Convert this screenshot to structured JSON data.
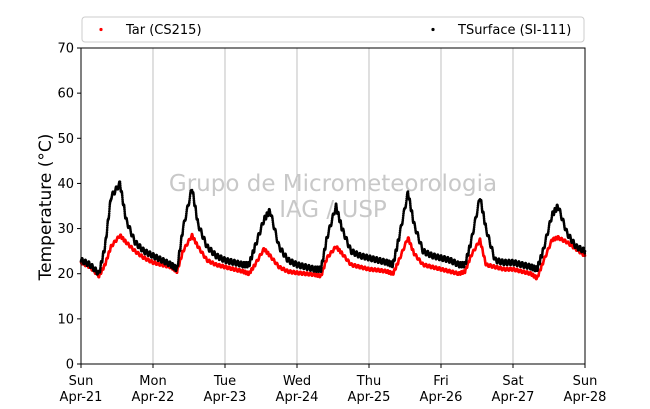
{
  "chart_data": {
    "type": "scatter",
    "title": "",
    "xlabel": "",
    "ylabel": "Temperature (°C)",
    "ylim": [
      0,
      70
    ],
    "yticks": [
      0,
      10,
      20,
      30,
      40,
      50,
      60,
      70
    ],
    "xlim": [
      "2019-04-21 00:00",
      "2019-04-28 00:00"
    ],
    "xtick_labels": [
      {
        "day": "Sun",
        "date": "Apr-21"
      },
      {
        "day": "Mon",
        "date": "Apr-22"
      },
      {
        "day": "Tue",
        "date": "Apr-23"
      },
      {
        "day": "Wed",
        "date": "Apr-24"
      },
      {
        "day": "Thu",
        "date": "Apr-25"
      },
      {
        "day": "Fri",
        "date": "Apr-26"
      },
      {
        "day": "Sat",
        "date": "Apr-27"
      },
      {
        "day": "Sun",
        "date": "Apr-28"
      }
    ],
    "grid": "vertical",
    "legend_position": "top",
    "watermark": [
      "Grupo de Micrometeorologia",
      "IAG / USP"
    ],
    "series": [
      {
        "name": "Tar (CS215)",
        "color": "#ff0000",
        "x": [
          "2019-04-21 00:00",
          "2019-04-21 03:00",
          "2019-04-21 06:00",
          "2019-04-21 08:00",
          "2019-04-21 10:00",
          "2019-04-21 13:00",
          "2019-04-21 15:00",
          "2019-04-21 18:00",
          "2019-04-21 21:00",
          "2019-04-22 00:00",
          "2019-04-22 03:00",
          "2019-04-22 06:00",
          "2019-04-22 08:00",
          "2019-04-22 10:00",
          "2019-04-22 13:00",
          "2019-04-22 15:00",
          "2019-04-22 18:00",
          "2019-04-22 21:00",
          "2019-04-23 00:00",
          "2019-04-23 03:00",
          "2019-04-23 06:00",
          "2019-04-23 08:00",
          "2019-04-23 10:00",
          "2019-04-23 13:00",
          "2019-04-23 15:00",
          "2019-04-23 18:00",
          "2019-04-23 21:00",
          "2019-04-24 00:00",
          "2019-04-24 03:00",
          "2019-04-24 06:00",
          "2019-04-24 08:00",
          "2019-04-24 10:00",
          "2019-04-24 13:00",
          "2019-04-24 15:00",
          "2019-04-24 18:00",
          "2019-04-24 21:00",
          "2019-04-25 00:00",
          "2019-04-25 03:00",
          "2019-04-25 06:00",
          "2019-04-25 08:00",
          "2019-04-25 10:00",
          "2019-04-25 13:00",
          "2019-04-25 15:00",
          "2019-04-25 18:00",
          "2019-04-25 21:00",
          "2019-04-26 00:00",
          "2019-04-26 03:00",
          "2019-04-26 06:00",
          "2019-04-26 08:00",
          "2019-04-26 10:00",
          "2019-04-26 13:00",
          "2019-04-26 15:00",
          "2019-04-26 18:00",
          "2019-04-26 21:00",
          "2019-04-27 00:00",
          "2019-04-27 03:00",
          "2019-04-27 06:00",
          "2019-04-27 08:00",
          "2019-04-27 10:00",
          "2019-04-27 13:00",
          "2019-04-27 15:00",
          "2019-04-27 18:00",
          "2019-04-27 21:00",
          "2019-04-28 00:00"
        ],
        "y": [
          22.5,
          21.5,
          19.5,
          22,
          26,
          28.5,
          27,
          25,
          23.5,
          22.5,
          22,
          21.5,
          20.5,
          25,
          28.5,
          26,
          23,
          22,
          21.5,
          21,
          20.5,
          20,
          22,
          25.5,
          24,
          21.5,
          20.5,
          20.2,
          20,
          19.8,
          19.5,
          23.5,
          26,
          24.5,
          22,
          21.5,
          21,
          20.8,
          20.5,
          20,
          23,
          28,
          24.5,
          22,
          21.5,
          21,
          20.5,
          20,
          20.5,
          24,
          27.5,
          22,
          21.5,
          21,
          21,
          20.5,
          20,
          19,
          22.5,
          27.5,
          28,
          27,
          25.5,
          24
        ]
      },
      {
        "name": "TSurface (SI-111)",
        "color": "#000000",
        "x": [
          "2019-04-21 00:00",
          "2019-04-21 03:00",
          "2019-04-21 06:00",
          "2019-04-21 08:00",
          "2019-04-21 10:00",
          "2019-04-21 13:00",
          "2019-04-21 15:00",
          "2019-04-21 18:00",
          "2019-04-21 21:00",
          "2019-04-22 00:00",
          "2019-04-22 03:00",
          "2019-04-22 06:00",
          "2019-04-22 08:00",
          "2019-04-22 10:00",
          "2019-04-22 13:00",
          "2019-04-22 15:00",
          "2019-04-22 18:00",
          "2019-04-22 21:00",
          "2019-04-23 00:00",
          "2019-04-23 03:00",
          "2019-04-23 06:00",
          "2019-04-23 08:00",
          "2019-04-23 10:00",
          "2019-04-23 13:00",
          "2019-04-23 15:00",
          "2019-04-23 18:00",
          "2019-04-23 21:00",
          "2019-04-24 00:00",
          "2019-04-24 03:00",
          "2019-04-24 06:00",
          "2019-04-24 08:00",
          "2019-04-24 10:00",
          "2019-04-24 13:00",
          "2019-04-24 15:00",
          "2019-04-24 18:00",
          "2019-04-24 21:00",
          "2019-04-25 00:00",
          "2019-04-25 03:00",
          "2019-04-25 06:00",
          "2019-04-25 08:00",
          "2019-04-25 10:00",
          "2019-04-25 13:00",
          "2019-04-25 15:00",
          "2019-04-25 18:00",
          "2019-04-25 21:00",
          "2019-04-26 00:00",
          "2019-04-26 03:00",
          "2019-04-26 06:00",
          "2019-04-26 08:00",
          "2019-04-26 10:00",
          "2019-04-26 13:00",
          "2019-04-26 15:00",
          "2019-04-26 18:00",
          "2019-04-26 21:00",
          "2019-04-27 00:00",
          "2019-04-27 03:00",
          "2019-04-27 06:00",
          "2019-04-27 08:00",
          "2019-04-27 10:00",
          "2019-04-27 13:00",
          "2019-04-27 15:00",
          "2019-04-27 18:00",
          "2019-04-27 21:00",
          "2019-04-28 00:00"
        ],
        "y": [
          23,
          22,
          20,
          26,
          37,
          40,
          32,
          27,
          25,
          24,
          23,
          22,
          21,
          30,
          39,
          31,
          26,
          24,
          23,
          22.5,
          22,
          22,
          26,
          32,
          34,
          26,
          23,
          22,
          21.5,
          21,
          21,
          28,
          35,
          30,
          25,
          24,
          23.5,
          23,
          22.5,
          22,
          28,
          38,
          31,
          25,
          24,
          23.5,
          23,
          22,
          22,
          27,
          37,
          30,
          23,
          22.5,
          22.5,
          22,
          21.5,
          21,
          25,
          33,
          35,
          29,
          26,
          25
        ]
      }
    ]
  }
}
